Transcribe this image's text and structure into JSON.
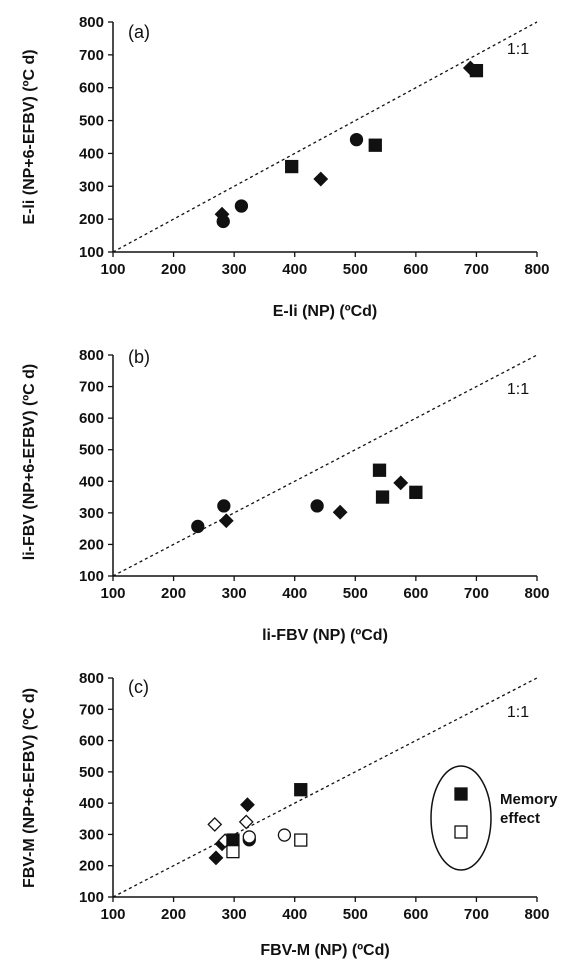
{
  "chart_data": [
    {
      "type": "scatter",
      "panel_label": "(a)",
      "xlabel": "E-li (NP) (ºCd)",
      "ylabel": "E-li (NP+6-EFBV) (ºC d)",
      "xlim": [
        100,
        800
      ],
      "ylim": [
        100,
        800
      ],
      "xticks": [
        "100",
        "200",
        "300",
        "400",
        "500",
        "600",
        "700",
        "800"
      ],
      "yticks": [
        "100",
        "200",
        "300",
        "400",
        "500",
        "600",
        "700",
        "800"
      ],
      "identity_label": "1:1",
      "series": [
        {
          "marker": "diamond-filled",
          "points": [
            [
              280,
              215
            ],
            [
              443,
              322
            ],
            [
              690,
              660
            ]
          ]
        },
        {
          "marker": "circle-filled",
          "points": [
            [
              282,
              193
            ],
            [
              312,
              240
            ],
            [
              502,
              442
            ]
          ]
        },
        {
          "marker": "square-filled",
          "points": [
            [
              395,
              360
            ],
            [
              533,
              425
            ],
            [
              700,
              652
            ]
          ]
        }
      ]
    },
    {
      "type": "scatter",
      "panel_label": "(b)",
      "xlabel": "li-FBV (NP) (ºCd)",
      "ylabel": "li-FBV (NP+6-EFBV) (ºC d)",
      "xlim": [
        100,
        800
      ],
      "ylim": [
        100,
        800
      ],
      "xticks": [
        "100",
        "200",
        "300",
        "400",
        "500",
        "600",
        "700",
        "800"
      ],
      "yticks": [
        "100",
        "200",
        "300",
        "400",
        "500",
        "600",
        "700",
        "800"
      ],
      "identity_label": "1:1",
      "series": [
        {
          "marker": "diamond-filled",
          "points": [
            [
              287,
              275
            ],
            [
              475,
              302
            ],
            [
              575,
              395
            ]
          ]
        },
        {
          "marker": "circle-filled",
          "points": [
            [
              240,
              257
            ],
            [
              283,
              322
            ],
            [
              437,
              322
            ]
          ]
        },
        {
          "marker": "square-filled",
          "points": [
            [
              540,
              435
            ],
            [
              545,
              350
            ],
            [
              600,
              365
            ]
          ]
        }
      ]
    },
    {
      "type": "scatter",
      "panel_label": "(c)",
      "xlabel": "FBV-M (NP) (ºCd)",
      "ylabel": "FBV-M (NP+6-EFBV) (ºC d)",
      "xlim": [
        100,
        800
      ],
      "ylim": [
        100,
        800
      ],
      "xticks": [
        "100",
        "200",
        "300",
        "400",
        "500",
        "600",
        "700",
        "800"
      ],
      "yticks": [
        "100",
        "200",
        "300",
        "400",
        "500",
        "600",
        "700",
        "800"
      ],
      "identity_label": "1:1",
      "legend": {
        "placement": "right",
        "text": [
          "Memory",
          "effect"
        ]
      },
      "series": [
        {
          "marker": "diamond-filled",
          "points": [
            [
              270,
              225
            ],
            [
              280,
              270
            ],
            [
              322,
              395
            ]
          ]
        },
        {
          "marker": "diamond-open",
          "points": [
            [
              268,
              332
            ],
            [
              285,
              280
            ],
            [
              320,
              340
            ]
          ]
        },
        {
          "marker": "circle-filled",
          "points": [
            [
              325,
              283
            ]
          ]
        },
        {
          "marker": "circle-open",
          "points": [
            [
              325,
              292
            ],
            [
              383,
              298
            ]
          ]
        },
        {
          "marker": "square-filled",
          "points": [
            [
              298,
              282
            ],
            [
              410,
              443
            ]
          ]
        },
        {
          "marker": "square-open",
          "points": [
            [
              298,
              245
            ],
            [
              410,
              282
            ]
          ]
        }
      ]
    }
  ]
}
